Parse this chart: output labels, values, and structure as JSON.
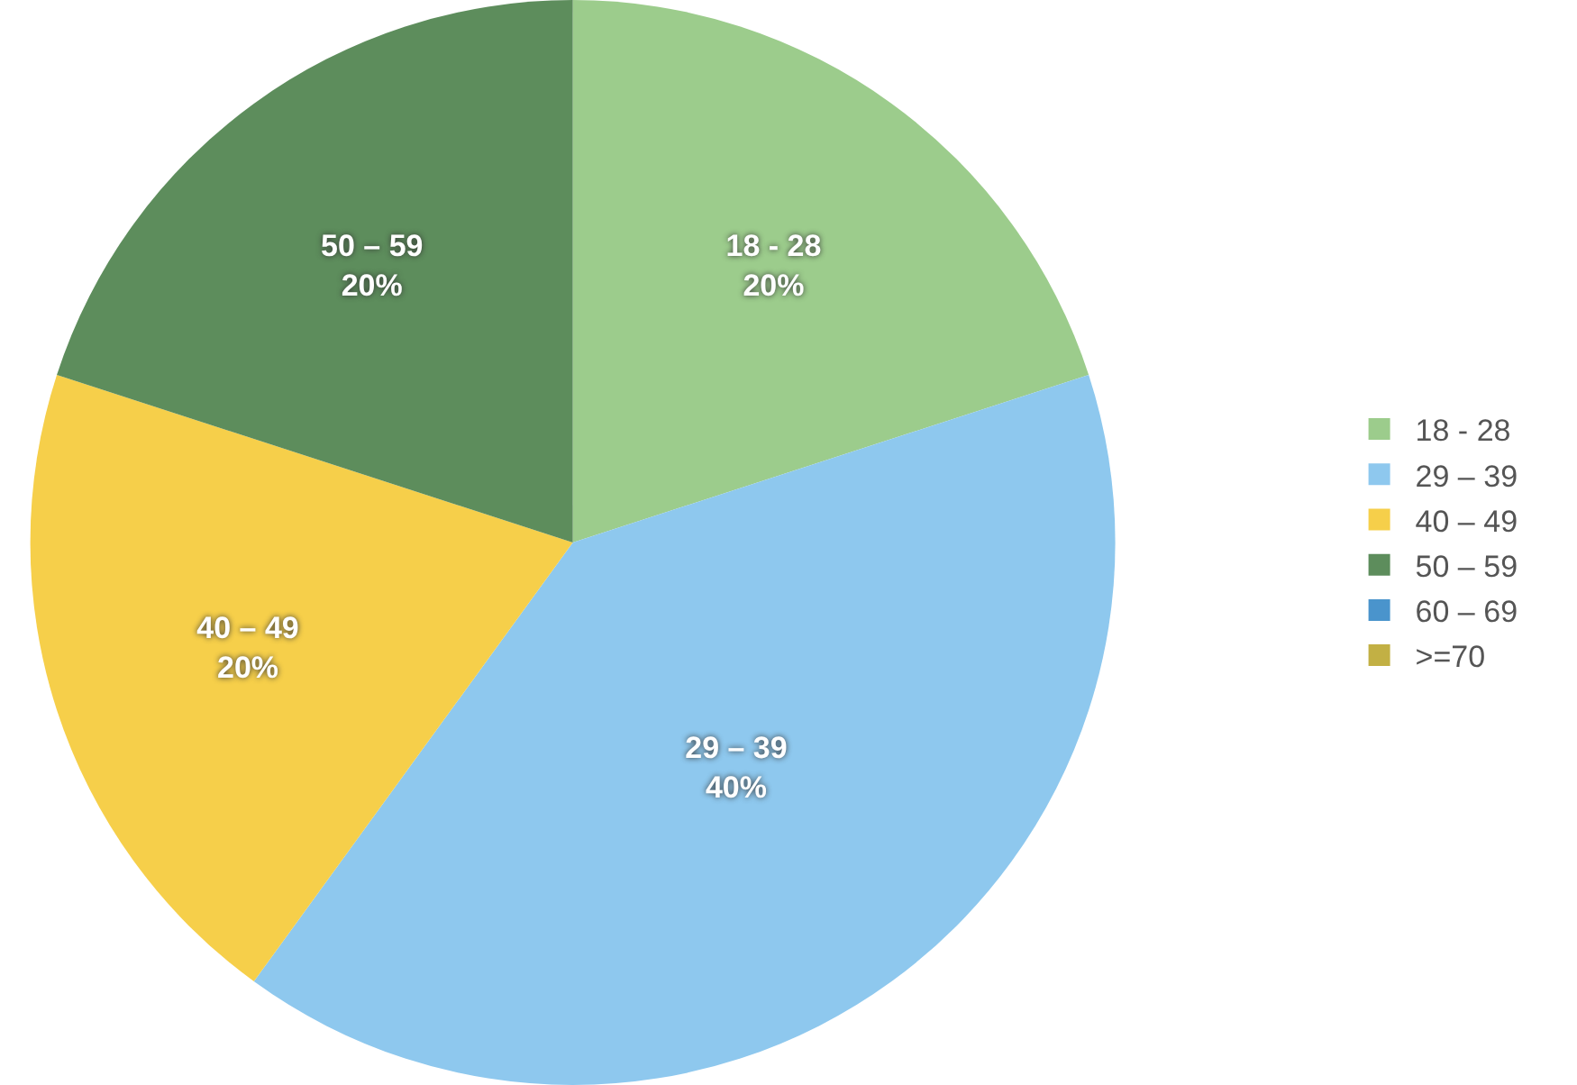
{
  "chart_data": {
    "type": "pie",
    "categories": [
      "18 - 28",
      "29 – 39",
      "40 – 49",
      "50 – 59",
      "60 – 69",
      ">=70"
    ],
    "values": [
      20,
      40,
      20,
      20,
      0,
      0
    ],
    "value_labels": [
      "20%",
      "40%",
      "20%",
      "20%",
      null,
      null
    ],
    "colors": [
      "#9ccc8c",
      "#8ec8ee",
      "#f6cf4a",
      "#5d8d5c",
      "#4a94cc",
      "#c2b044"
    ],
    "legend": "right"
  }
}
